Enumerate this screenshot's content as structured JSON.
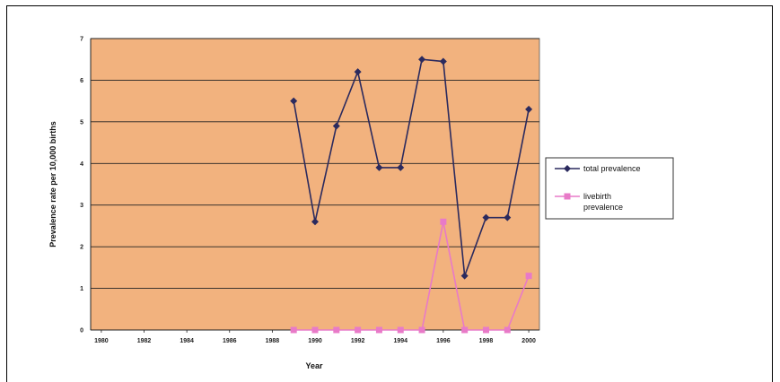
{
  "chart_data": {
    "type": "line",
    "xlabel": "Year",
    "ylabel": "Prevalence rate per 10,000 births",
    "ylim": [
      0,
      7
    ],
    "yticks": [
      "0",
      "1",
      "2",
      "3",
      "4",
      "5",
      "6",
      "7"
    ],
    "x_tick_labels": [
      "1980",
      "1982",
      "1984",
      "1986",
      "1988",
      "1990",
      "1992",
      "1994",
      "1996",
      "1998",
      "2000"
    ],
    "x": [
      1980,
      1981,
      1982,
      1983,
      1984,
      1985,
      1986,
      1987,
      1988,
      1989,
      1990,
      1991,
      1992,
      1993,
      1994,
      1995,
      1996,
      1997,
      1998,
      1999,
      2000
    ],
    "grid": "horizontal",
    "legend_position": "right",
    "plot_background": "#F2B27E",
    "series": [
      {
        "name": "total prevalence",
        "color": "#2B2A5E",
        "marker": "diamond",
        "values": [
          null,
          null,
          null,
          null,
          null,
          null,
          null,
          null,
          null,
          5.5,
          2.6,
          4.9,
          6.2,
          3.9,
          3.9,
          6.5,
          6.45,
          1.3,
          2.7,
          2.7,
          5.3
        ]
      },
      {
        "name": "livebirth prevalence",
        "color": "#E87AC8",
        "marker": "square",
        "values": [
          null,
          null,
          null,
          null,
          null,
          null,
          null,
          null,
          null,
          0,
          0,
          0,
          0,
          0,
          0,
          0,
          2.6,
          0,
          0,
          0,
          1.3
        ]
      }
    ]
  }
}
